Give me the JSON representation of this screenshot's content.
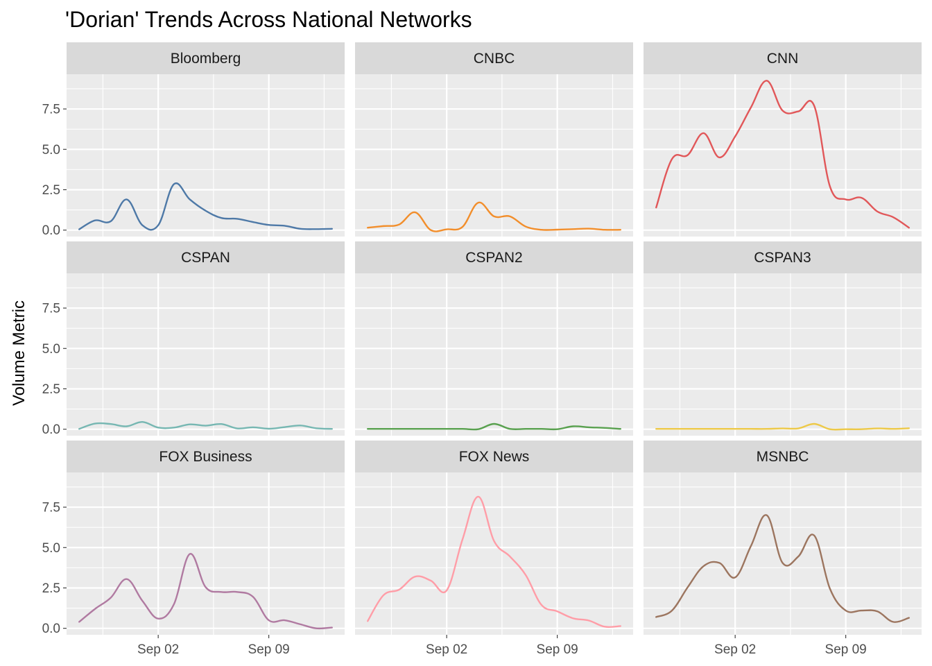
{
  "chart_data": {
    "type": "line",
    "title": "'Dorian' Trends Across National Networks",
    "xlabel": "",
    "ylabel": "Volume Metric",
    "x": [
      "2019-08-28",
      "2019-08-29",
      "2019-08-30",
      "2019-08-31",
      "2019-09-01",
      "2019-09-02",
      "2019-09-03",
      "2019-09-04",
      "2019-09-05",
      "2019-09-06",
      "2019-09-07",
      "2019-09-08",
      "2019-09-09",
      "2019-09-10",
      "2019-09-11",
      "2019-09-12",
      "2019-09-13"
    ],
    "x_tick_labels": [
      "Sep 02",
      "Sep 09"
    ],
    "x_tick_dates": [
      "2019-09-02",
      "2019-09-09"
    ],
    "y_tick_labels": [
      "0.0",
      "2.5",
      "5.0",
      "7.5"
    ],
    "y_ticks": [
      0,
      2.5,
      5,
      7.5
    ],
    "ylim": [
      -0.4,
      9.65
    ],
    "grid": true,
    "facets": [
      "Bloomberg",
      "CNBC",
      "CNN",
      "CSPAN",
      "CSPAN2",
      "CSPAN3",
      "FOX Business",
      "FOX News",
      "MSNBC"
    ],
    "series": [
      {
        "name": "Bloomberg",
        "color": "#4e79a7",
        "values": [
          0.05,
          0.6,
          0.55,
          1.9,
          0.3,
          0.3,
          2.85,
          1.9,
          1.2,
          0.75,
          0.7,
          0.5,
          0.32,
          0.27,
          0.08,
          0.06,
          0.08
        ]
      },
      {
        "name": "CNBC",
        "color": "#f28e2b",
        "values": [
          0.15,
          0.25,
          0.35,
          1.1,
          0.0,
          0.05,
          0.2,
          1.7,
          0.85,
          0.85,
          0.22,
          0.02,
          0.03,
          0.06,
          0.09,
          0.02,
          0.02
        ]
      },
      {
        "name": "CNN",
        "color": "#e15759",
        "values": [
          1.4,
          4.4,
          4.65,
          6.0,
          4.5,
          5.8,
          7.6,
          9.25,
          7.4,
          7.35,
          7.7,
          2.7,
          1.9,
          2.0,
          1.15,
          0.8,
          0.15
        ]
      },
      {
        "name": "CSPAN",
        "color": "#76b7b2",
        "values": [
          0.02,
          0.35,
          0.32,
          0.18,
          0.45,
          0.1,
          0.1,
          0.3,
          0.22,
          0.32,
          0.05,
          0.12,
          0.03,
          0.13,
          0.23,
          0.06,
          0.02
        ]
      },
      {
        "name": "CSPAN2",
        "color": "#59a14f",
        "values": [
          0.02,
          0.02,
          0.02,
          0.02,
          0.02,
          0.02,
          0.02,
          0.0,
          0.33,
          0.02,
          0.02,
          0.02,
          0.0,
          0.18,
          0.12,
          0.08,
          0.02
        ]
      },
      {
        "name": "CSPAN3",
        "color": "#edc948",
        "values": [
          0.02,
          0.02,
          0.02,
          0.02,
          0.02,
          0.02,
          0.02,
          0.02,
          0.05,
          0.05,
          0.33,
          0.0,
          0.0,
          0.0,
          0.05,
          0.02,
          0.06
        ]
      },
      {
        "name": "FOX Business",
        "color": "#b07aa1",
        "values": [
          0.4,
          1.2,
          1.9,
          3.05,
          1.7,
          0.6,
          1.5,
          4.6,
          2.55,
          2.25,
          2.25,
          1.95,
          0.5,
          0.5,
          0.25,
          0.0,
          0.05
        ]
      },
      {
        "name": "FOX News",
        "color": "#ff9da7",
        "values": [
          0.45,
          2.05,
          2.4,
          3.2,
          2.95,
          2.35,
          5.5,
          8.15,
          5.4,
          4.45,
          3.3,
          1.45,
          1.05,
          0.62,
          0.48,
          0.1,
          0.14
        ]
      },
      {
        "name": "MSNBC",
        "color": "#9c755f",
        "values": [
          0.7,
          1.1,
          2.55,
          3.85,
          4.05,
          3.15,
          5.1,
          7.0,
          4.05,
          4.45,
          5.75,
          2.45,
          1.1,
          1.1,
          1.05,
          0.4,
          0.65
        ]
      }
    ]
  }
}
